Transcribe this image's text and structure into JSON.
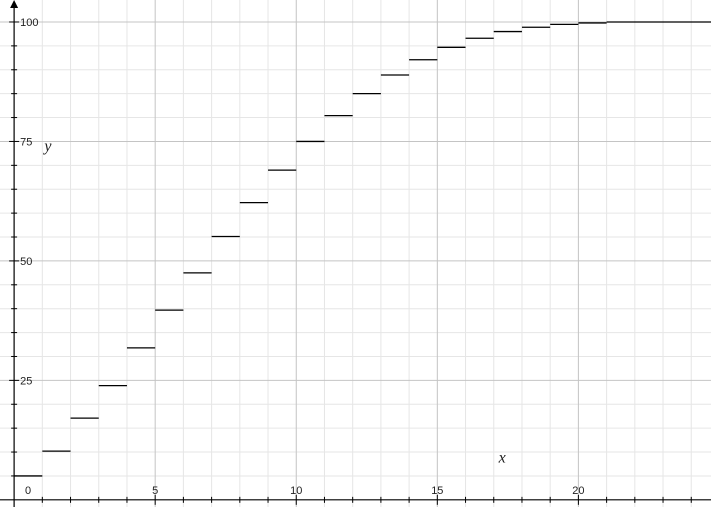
{
  "chart_data": {
    "type": "line",
    "xlabel": "x",
    "ylabel": "y",
    "xlim": [
      -0.5,
      24.7
    ],
    "ylim": [
      -1.5,
      104.6
    ],
    "grid": true,
    "x_major_ticks": [
      0,
      5,
      10,
      15,
      20
    ],
    "x_tick_labels": [
      "0",
      "5",
      "10",
      "15",
      "20"
    ],
    "y_major_ticks": [
      25,
      50,
      75,
      100
    ],
    "y_tick_labels": [
      "25",
      "50",
      "75",
      "100"
    ],
    "series": [
      {
        "style": "step-segments",
        "color": "#000000",
        "segments": [
          {
            "x0": 0,
            "x1": 1,
            "y": 5
          },
          {
            "x0": 1,
            "x1": 2,
            "y": 10.2
          },
          {
            "x0": 2,
            "x1": 3,
            "y": 17.1
          },
          {
            "x0": 3,
            "x1": 4,
            "y": 23.9
          },
          {
            "x0": 4,
            "x1": 5,
            "y": 31.8
          },
          {
            "x0": 5,
            "x1": 6,
            "y": 39.7
          },
          {
            "x0": 6,
            "x1": 7,
            "y": 47.5
          },
          {
            "x0": 7,
            "x1": 8,
            "y": 55.1
          },
          {
            "x0": 8,
            "x1": 9,
            "y": 62.2
          },
          {
            "x0": 9,
            "x1": 10,
            "y": 69
          },
          {
            "x0": 10,
            "x1": 11,
            "y": 75
          },
          {
            "x0": 11,
            "x1": 12,
            "y": 80.4
          },
          {
            "x0": 12,
            "x1": 13,
            "y": 85
          },
          {
            "x0": 13,
            "x1": 14,
            "y": 88.9
          },
          {
            "x0": 14,
            "x1": 15,
            "y": 92.1
          },
          {
            "x0": 15,
            "x1": 16,
            "y": 94.7
          },
          {
            "x0": 16,
            "x1": 17,
            "y": 96.6
          },
          {
            "x0": 17,
            "x1": 18,
            "y": 98
          },
          {
            "x0": 18,
            "x1": 19,
            "y": 98.9
          },
          {
            "x0": 19,
            "x1": 20,
            "y": 99.5
          },
          {
            "x0": 20,
            "x1": 21,
            "y": 99.8
          },
          {
            "x0": 21,
            "x1": 24.7,
            "y": 100
          }
        ]
      }
    ],
    "colors": {
      "background": "#ffffff",
      "grid_major": "#c4c4c4",
      "grid_minor": "#e6e6e6",
      "axis": "#000000",
      "mark": "#000000"
    }
  }
}
